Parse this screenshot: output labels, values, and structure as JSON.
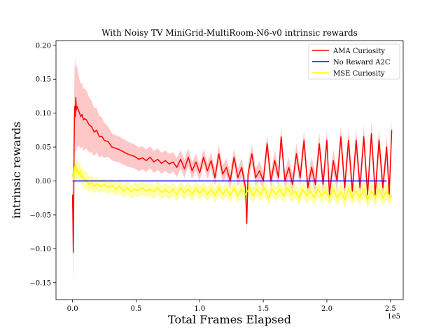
{
  "chart_data": {
    "type": "line",
    "title": "With Noisy TV MiniGrid-MultiRoom-N6-v0 intrinsic rewards",
    "xlabel": "Total Frames Elapsed",
    "ylabel": "intrinsic rewards",
    "x_offset_label": "1e5",
    "xlim": [
      -0.13,
      2.6
    ],
    "ylim": [
      -0.175,
      0.207
    ],
    "x_ticks": [
      0,
      0.5,
      1.0,
      1.5,
      2.0,
      2.5
    ],
    "x_tick_labels": [
      "0.0",
      "0.5",
      "1.0",
      "1.5",
      "2.0",
      "2.5"
    ],
    "y_ticks": [
      -0.15,
      -0.1,
      -0.05,
      0.0,
      0.05,
      0.1,
      0.15,
      0.2
    ],
    "y_tick_labels": [
      "−0.15",
      "−0.10",
      "−0.05",
      "0.00",
      "0.05",
      "0.10",
      "0.15",
      "0.20"
    ],
    "legend_position": "top-right",
    "series": [
      {
        "name": "AMA Curiosity",
        "color": "#ff0000",
        "band_color": "#ff9a9a",
        "band_halfwidth": [
          [
            0,
            0.02
          ],
          [
            0.005,
            0.05
          ],
          [
            0.02,
            0.07
          ],
          [
            0.05,
            0.05
          ],
          [
            0.3,
            0.02
          ],
          [
            1.0,
            0.012
          ],
          [
            2.5,
            0.018
          ]
        ],
        "points": [
          [
            0.0,
            -0.02
          ],
          [
            0.003,
            -0.06
          ],
          [
            0.006,
            -0.105
          ],
          [
            0.009,
            -0.04
          ],
          [
            0.012,
            0.05
          ],
          [
            0.015,
            0.09
          ],
          [
            0.018,
            0.11
          ],
          [
            0.022,
            0.095
          ],
          [
            0.026,
            0.123
          ],
          [
            0.03,
            0.105
          ],
          [
            0.035,
            0.11
          ],
          [
            0.045,
            0.105
          ],
          [
            0.055,
            0.1
          ],
          [
            0.065,
            0.095
          ],
          [
            0.075,
            0.098
          ],
          [
            0.085,
            0.09
          ],
          [
            0.095,
            0.092
          ],
          [
            0.11,
            0.09
          ],
          [
            0.13,
            0.083
          ],
          [
            0.15,
            0.08
          ],
          [
            0.17,
            0.072
          ],
          [
            0.19,
            0.075
          ],
          [
            0.21,
            0.065
          ],
          [
            0.23,
            0.066
          ],
          [
            0.25,
            0.06
          ],
          [
            0.28,
            0.058
          ],
          [
            0.31,
            0.05
          ],
          [
            0.34,
            0.048
          ],
          [
            0.37,
            0.046
          ],
          [
            0.4,
            0.043
          ],
          [
            0.43,
            0.04
          ],
          [
            0.46,
            0.038
          ],
          [
            0.49,
            0.036
          ],
          [
            0.52,
            0.032
          ],
          [
            0.55,
            0.034
          ],
          [
            0.58,
            0.03
          ],
          [
            0.61,
            0.035
          ],
          [
            0.64,
            0.028
          ],
          [
            0.67,
            0.032
          ],
          [
            0.7,
            0.026
          ],
          [
            0.73,
            0.03
          ],
          [
            0.76,
            0.025
          ],
          [
            0.79,
            0.028
          ],
          [
            0.82,
            0.02
          ],
          [
            0.85,
            0.032
          ],
          [
            0.88,
            0.018
          ],
          [
            0.91,
            0.035
          ],
          [
            0.94,
            0.015
          ],
          [
            0.97,
            0.028
          ],
          [
            1.0,
            0.012
          ],
          [
            1.03,
            0.035
          ],
          [
            1.06,
            0.015
          ],
          [
            1.09,
            0.03
          ],
          [
            1.12,
            0.005
          ],
          [
            1.15,
            0.04
          ],
          [
            1.18,
            0.01
          ],
          [
            1.21,
            0.02
          ],
          [
            1.24,
            0.0
          ],
          [
            1.27,
            0.035
          ],
          [
            1.3,
            0.005
          ],
          [
            1.33,
            0.02
          ],
          [
            1.36,
            -0.01
          ],
          [
            1.37,
            -0.063
          ],
          [
            1.38,
            0.01
          ],
          [
            1.41,
            0.04
          ],
          [
            1.44,
            0.005
          ],
          [
            1.47,
            0.015
          ],
          [
            1.5,
            0.0
          ],
          [
            1.53,
            0.055
          ],
          [
            1.56,
            0.0
          ],
          [
            1.59,
            0.03
          ],
          [
            1.62,
            0.005
          ],
          [
            1.64,
            0.065
          ],
          [
            1.67,
            0.0
          ],
          [
            1.7,
            0.02
          ],
          [
            1.73,
            -0.005
          ],
          [
            1.76,
            0.04
          ],
          [
            1.79,
            0.005
          ],
          [
            1.82,
            0.06
          ],
          [
            1.85,
            -0.01
          ],
          [
            1.88,
            0.02
          ],
          [
            1.91,
            -0.005
          ],
          [
            1.94,
            0.055
          ],
          [
            1.97,
            -0.005
          ],
          [
            2.0,
            0.06
          ],
          [
            2.02,
            -0.02
          ],
          [
            2.05,
            0.03
          ],
          [
            2.08,
            0.0
          ],
          [
            2.11,
            0.065
          ],
          [
            2.14,
            -0.01
          ],
          [
            2.17,
            0.06
          ],
          [
            2.2,
            -0.015
          ],
          [
            2.23,
            0.06
          ],
          [
            2.26,
            -0.01
          ],
          [
            2.29,
            0.065
          ],
          [
            2.32,
            -0.02
          ],
          [
            2.35,
            0.07
          ],
          [
            2.38,
            -0.02
          ],
          [
            2.41,
            0.06
          ],
          [
            2.44,
            -0.01
          ],
          [
            2.47,
            0.05
          ],
          [
            2.49,
            -0.02
          ],
          [
            2.51,
            0.075
          ]
        ]
      },
      {
        "name": "No Reward A2C",
        "color": "#0000ff",
        "points": [
          [
            0.0,
            0.0
          ],
          [
            2.47,
            0.0
          ]
        ]
      },
      {
        "name": "MSE Curiosity",
        "color": "#ffff00",
        "band_color": "#ffff66",
        "band_halfwidth": [
          [
            0,
            0.01
          ],
          [
            0.02,
            0.015
          ],
          [
            0.2,
            0.01
          ],
          [
            1.0,
            0.01
          ],
          [
            2.5,
            0.012
          ]
        ],
        "points": [
          [
            0.0,
            0.01
          ],
          [
            0.005,
            0.005
          ],
          [
            0.01,
            0.0
          ],
          [
            0.015,
            0.02
          ],
          [
            0.02,
            0.015
          ],
          [
            0.025,
            0.025
          ],
          [
            0.03,
            0.012
          ],
          [
            0.04,
            0.018
          ],
          [
            0.05,
            0.01
          ],
          [
            0.06,
            0.015
          ],
          [
            0.07,
            0.005
          ],
          [
            0.08,
            0.008
          ],
          [
            0.09,
            0.0
          ],
          [
            0.11,
            0.002
          ],
          [
            0.13,
            -0.005
          ],
          [
            0.15,
            -0.003
          ],
          [
            0.17,
            -0.008
          ],
          [
            0.19,
            -0.004
          ],
          [
            0.22,
            -0.008
          ],
          [
            0.25,
            -0.005
          ],
          [
            0.28,
            -0.01
          ],
          [
            0.31,
            -0.006
          ],
          [
            0.34,
            -0.012
          ],
          [
            0.37,
            -0.008
          ],
          [
            0.4,
            -0.015
          ],
          [
            0.43,
            -0.01
          ],
          [
            0.46,
            -0.016
          ],
          [
            0.49,
            -0.012
          ],
          [
            0.52,
            -0.014
          ],
          [
            0.55,
            -0.01
          ],
          [
            0.58,
            -0.015
          ],
          [
            0.61,
            -0.012
          ],
          [
            0.64,
            -0.016
          ],
          [
            0.67,
            -0.01
          ],
          [
            0.7,
            -0.017
          ],
          [
            0.73,
            -0.013
          ],
          [
            0.76,
            -0.018
          ],
          [
            0.79,
            -0.012
          ],
          [
            0.82,
            -0.02
          ],
          [
            0.85,
            -0.01
          ],
          [
            0.88,
            -0.018
          ],
          [
            0.91,
            -0.012
          ],
          [
            0.94,
            -0.02
          ],
          [
            0.97,
            -0.01
          ],
          [
            1.0,
            -0.018
          ],
          [
            1.03,
            -0.012
          ],
          [
            1.06,
            -0.02
          ],
          [
            1.09,
            -0.012
          ],
          [
            1.12,
            -0.022
          ],
          [
            1.15,
            -0.01
          ],
          [
            1.18,
            -0.02
          ],
          [
            1.21,
            -0.012
          ],
          [
            1.24,
            -0.022
          ],
          [
            1.27,
            -0.01
          ],
          [
            1.3,
            -0.022
          ],
          [
            1.33,
            -0.012
          ],
          [
            1.36,
            -0.02
          ],
          [
            1.39,
            -0.01
          ],
          [
            1.42,
            -0.022
          ],
          [
            1.45,
            -0.012
          ],
          [
            1.48,
            -0.02
          ],
          [
            1.51,
            -0.01
          ],
          [
            1.54,
            -0.025
          ],
          [
            1.57,
            -0.012
          ],
          [
            1.6,
            -0.02
          ],
          [
            1.63,
            -0.012
          ],
          [
            1.66,
            -0.022
          ],
          [
            1.69,
            -0.01
          ],
          [
            1.72,
            -0.02
          ],
          [
            1.75,
            -0.015
          ],
          [
            1.78,
            -0.025
          ],
          [
            1.81,
            -0.012
          ],
          [
            1.84,
            -0.022
          ],
          [
            1.87,
            -0.015
          ],
          [
            1.9,
            -0.025
          ],
          [
            1.93,
            -0.012
          ],
          [
            1.96,
            -0.022
          ],
          [
            1.99,
            -0.015
          ],
          [
            2.02,
            -0.025
          ],
          [
            2.05,
            -0.012
          ],
          [
            2.08,
            -0.025
          ],
          [
            2.11,
            -0.015
          ],
          [
            2.14,
            -0.028
          ],
          [
            2.17,
            -0.012
          ],
          [
            2.2,
            -0.025
          ],
          [
            2.23,
            -0.015
          ],
          [
            2.26,
            -0.025
          ],
          [
            2.29,
            -0.012
          ],
          [
            2.32,
            -0.028
          ],
          [
            2.35,
            -0.015
          ],
          [
            2.38,
            -0.025
          ],
          [
            2.41,
            -0.012
          ],
          [
            2.44,
            -0.025
          ],
          [
            2.47,
            -0.015
          ],
          [
            2.5,
            -0.025
          ],
          [
            2.51,
            -0.02
          ]
        ]
      }
    ]
  }
}
